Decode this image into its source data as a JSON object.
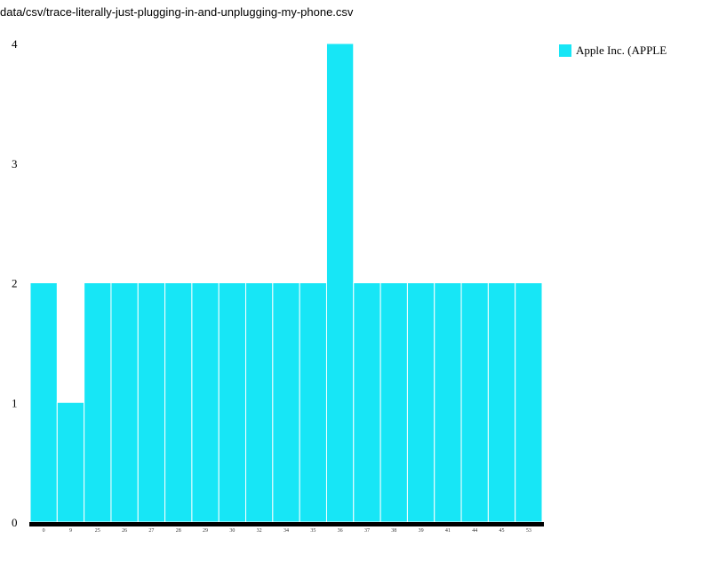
{
  "header": {
    "file_path": "data/csv/trace-literally-just-plugging-in-and-unplugging-my-phone.csv"
  },
  "colors": {
    "bar": "#17e6f6",
    "axis": "#000000",
    "bar_separator": "#ffffff"
  },
  "chart_data": {
    "type": "bar",
    "title": "",
    "xlabel": "",
    "ylabel": "",
    "categories": [
      "0",
      "9",
      "25",
      "26",
      "27",
      "28",
      "29",
      "30",
      "32",
      "34",
      "35",
      "36",
      "37",
      "38",
      "39",
      "41",
      "44",
      "45",
      "53"
    ],
    "series": [
      {
        "name": "Apple Inc. (APPLE",
        "values": [
          2,
          1,
          2,
          2,
          2,
          2,
          2,
          2,
          2,
          2,
          2,
          4,
          2,
          2,
          2,
          2,
          2,
          2,
          2
        ]
      }
    ],
    "yticks": [
      "0",
      "1",
      "2",
      "3",
      "4"
    ],
    "ylim": [
      0,
      4
    ],
    "grid": false,
    "legend_position": "top-right"
  }
}
